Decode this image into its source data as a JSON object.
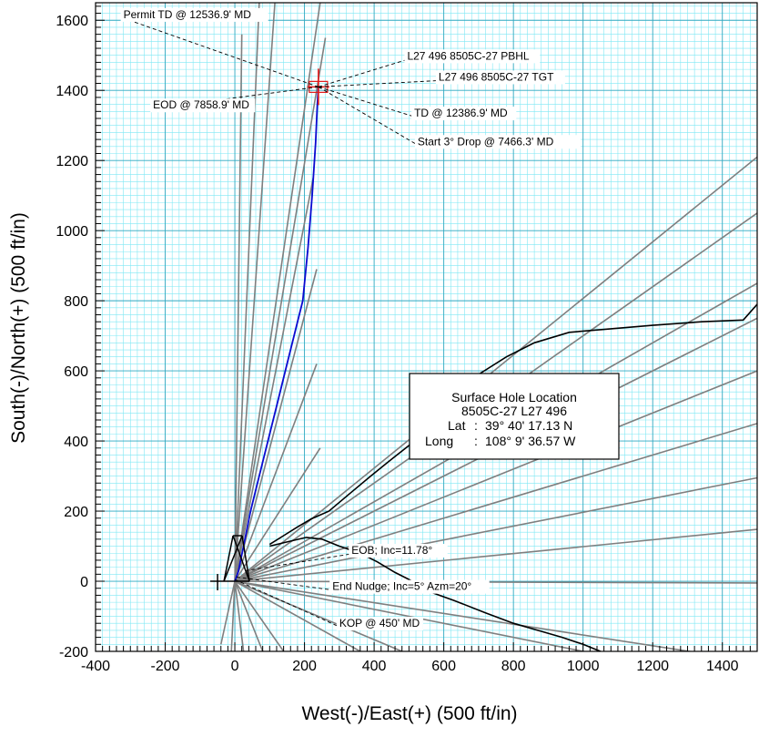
{
  "chart_data": {
    "type": "line",
    "title": "",
    "xlabel": "West(-)/East(+) (500 ft/in)",
    "ylabel": "South(-)/North(+) (500 ft/in)",
    "xlim": [
      -400,
      1500
    ],
    "ylim": [
      -200,
      1650
    ],
    "grid": true,
    "grid_minor_step": 20,
    "grid_major_step": 200,
    "xticks": [
      "-400",
      "-200",
      "0",
      "200",
      "400",
      "600",
      "800",
      "1000",
      "1200",
      "1400"
    ],
    "yticks": [
      "-200",
      "0",
      "200",
      "400",
      "600",
      "800",
      "1000",
      "1200",
      "1400",
      "1600"
    ],
    "colors": {
      "grid": "#7fe8f4",
      "offset_wells": "#7f7f7f",
      "planned_well": "#0a0ad0",
      "target": "#e01818",
      "black": "#000000"
    },
    "series": [
      {
        "kind": "planned_well",
        "points": [
          [
            0,
            0
          ],
          [
            10,
            28
          ],
          [
            25,
            100
          ],
          [
            45,
            200
          ],
          [
            70,
            300
          ],
          [
            95,
            400
          ],
          [
            120,
            500
          ],
          [
            145,
            600
          ],
          [
            170,
            700
          ],
          [
            195,
            800
          ],
          [
            210,
            950
          ],
          [
            222,
            1100
          ],
          [
            232,
            1250
          ],
          [
            237,
            1360
          ],
          [
            240,
            1410
          ]
        ]
      },
      {
        "kind": "black_well_upper",
        "points": [
          [
            100,
            105
          ],
          [
            140,
            130
          ],
          [
            180,
            155
          ],
          [
            220,
            178
          ],
          [
            270,
            200
          ],
          [
            330,
            250
          ],
          [
            390,
            300
          ],
          [
            450,
            348
          ],
          [
            510,
            395
          ],
          [
            560,
            440
          ],
          [
            620,
            520
          ],
          [
            700,
            590
          ],
          [
            780,
            640
          ],
          [
            860,
            680
          ],
          [
            960,
            710
          ],
          [
            1080,
            720
          ],
          [
            1200,
            730
          ],
          [
            1340,
            740
          ],
          [
            1460,
            745
          ],
          [
            1500,
            790
          ]
        ]
      },
      {
        "kind": "black_well_lower",
        "points": [
          [
            100,
            100
          ],
          [
            150,
            112
          ],
          [
            205,
            125
          ],
          [
            250,
            120
          ],
          [
            300,
            100
          ],
          [
            360,
            80
          ],
          [
            410,
            55
          ],
          [
            460,
            25
          ],
          [
            500,
            5
          ],
          [
            560,
            -30
          ],
          [
            630,
            -55
          ],
          [
            720,
            -90
          ],
          [
            800,
            -120
          ],
          [
            870,
            -140
          ],
          [
            940,
            -160
          ],
          [
            1000,
            -180
          ],
          [
            1050,
            -200
          ]
        ]
      }
    ],
    "offset_wells": [
      [
        [
          0,
          0
        ],
        [
          70,
          1650
        ]
      ],
      [
        [
          0,
          0
        ],
        [
          115,
          1650
        ]
      ],
      [
        [
          0,
          0
        ],
        [
          245,
          1650
        ]
      ],
      [
        [
          0,
          0
        ],
        [
          20,
          1560
        ]
      ],
      [
        [
          0,
          0
        ],
        [
          260,
          1550
        ]
      ],
      [
        [
          0,
          0
        ],
        [
          225,
          1150
        ]
      ],
      [
        [
          0,
          0
        ],
        [
          235,
          890
        ]
      ],
      [
        [
          0,
          0
        ],
        [
          235,
          620
        ]
      ],
      [
        [
          0,
          0
        ],
        [
          245,
          380
        ]
      ],
      [
        [
          0,
          0
        ],
        [
          1500,
          1210
        ]
      ],
      [
        [
          0,
          0
        ],
        [
          1500,
          1050
        ]
      ],
      [
        [
          0,
          0
        ],
        [
          1500,
          850
        ]
      ],
      [
        [
          0,
          0
        ],
        [
          1500,
          750
        ]
      ],
      [
        [
          0,
          0
        ],
        [
          1500,
          600
        ]
      ],
      [
        [
          0,
          0
        ],
        [
          1500,
          450
        ]
      ],
      [
        [
          0,
          0
        ],
        [
          1500,
          295
        ]
      ],
      [
        [
          0,
          0
        ],
        [
          1500,
          148
        ]
      ],
      [
        [
          0,
          0
        ],
        [
          1500,
          -5
        ]
      ],
      [
        [
          0,
          0
        ],
        [
          1500,
          -230
        ]
      ],
      [
        [
          0,
          0
        ],
        [
          1500,
          -300
        ]
      ],
      [
        [
          0,
          0
        ],
        [
          480,
          -200
        ]
      ],
      [
        [
          0,
          0
        ],
        [
          360,
          -200
        ]
      ],
      [
        [
          0,
          0
        ],
        [
          140,
          -200
        ]
      ],
      [
        [
          0,
          0
        ],
        [
          80,
          -200
        ]
      ],
      [
        [
          0,
          0
        ],
        [
          25,
          -200
        ]
      ],
      [
        [
          0,
          0
        ],
        [
          -10,
          -200
        ]
      ],
      [
        [
          0,
          0
        ],
        [
          -40,
          -180
        ]
      ]
    ],
    "annotations": [
      {
        "text": "Permit TD @ 12536.9' MD",
        "anchor": [
          240,
          1410
        ],
        "label": [
          -320,
          1606
        ],
        "align": "start"
      },
      {
        "text": "L27 496 8505C-27 PBHL",
        "anchor": [
          240,
          1410
        ],
        "label": [
          495,
          1488
        ],
        "align": "start"
      },
      {
        "text": "L27 496 8505C-27 TGT",
        "anchor": [
          240,
          1410
        ],
        "label": [
          585,
          1428
        ],
        "align": "start"
      },
      {
        "text": "EOD @ 7858.9' MD",
        "anchor": [
          240,
          1410
        ],
        "label": [
          -235,
          1348
        ],
        "align": "start"
      },
      {
        "text": "TD @ 12386.9' MD",
        "anchor": [
          240,
          1410
        ],
        "label": [
          515,
          1325
        ],
        "align": "start"
      },
      {
        "text": "Start 3° Drop @ 7466.3' MD",
        "anchor": [
          240,
          1410
        ],
        "label": [
          525,
          1244
        ],
        "align": "start"
      },
      {
        "text": "EOB; Inc=11.78°",
        "anchor": [
          30,
          30
        ],
        "label": [
          335,
          78
        ],
        "align": "start"
      },
      {
        "text": "End Nudge; Inc=5° Azm=20°",
        "anchor": [
          5,
          12
        ],
        "label": [
          280,
          -25
        ],
        "align": "start"
      },
      {
        "text": "KOP @ 450' MD",
        "anchor": [
          0,
          5
        ],
        "label": [
          300,
          -130
        ],
        "align": "start"
      }
    ],
    "target_marker": [
      240,
      1410
    ]
  },
  "info_box": {
    "title": "Surface Hole Location",
    "well": "8505C-27 L27 496",
    "lat_label": "Lat",
    "lat_value": "39° 40' 17.13 N",
    "long_label": "Long",
    "long_value": "108° 9' 36.57 W"
  }
}
